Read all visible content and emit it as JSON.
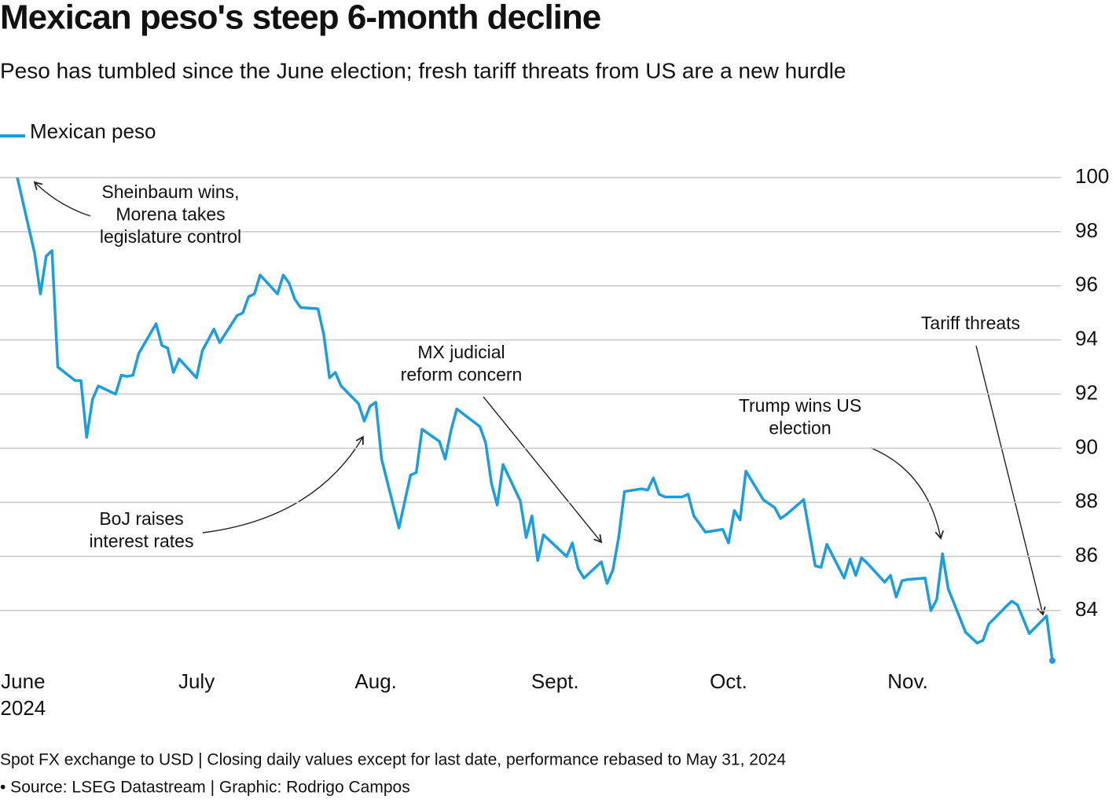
{
  "chart_data": {
    "type": "line",
    "title": "Mexican peso's steep 6-month decline",
    "subtitle": "Peso has tumbled since the June election; fresh tariff threats from US are a new hurdle",
    "x": [
      0,
      3,
      4,
      5,
      6,
      7,
      10,
      11,
      12,
      13,
      14,
      17,
      18,
      19,
      20,
      21,
      24,
      25,
      26,
      27,
      28,
      31,
      32,
      34,
      35,
      38,
      39,
      40,
      41,
      42,
      45,
      46,
      47,
      48,
      49,
      52,
      53,
      54,
      55,
      56,
      59,
      60,
      61,
      62,
      63,
      66,
      68,
      69,
      70,
      73,
      74,
      75,
      76,
      80,
      81,
      82,
      83,
      84,
      87,
      88,
      89,
      90,
      91,
      95,
      96,
      97,
      98,
      101,
      102,
      103,
      104,
      105,
      108,
      109,
      110,
      111,
      112,
      115,
      116,
      117,
      119,
      122,
      123,
      124,
      125,
      126,
      129,
      130,
      131,
      132,
      133,
      136,
      138,
      139,
      140,
      143,
      144,
      145,
      146,
      147,
      150,
      151,
      152,
      153,
      154,
      157,
      158,
      159,
      160,
      161,
      164,
      166,
      167,
      168,
      171,
      172,
      173,
      175,
      178,
      179
    ],
    "series": [
      {
        "name": "Mexican peso",
        "color": "#1b9ee0",
        "values": [
          100,
          97.2,
          95.7,
          97.1,
          97.3,
          93.0,
          92.5,
          92.5,
          90.4,
          91.8,
          92.3,
          92.0,
          92.7,
          92.65,
          92.7,
          93.5,
          94.6,
          93.8,
          93.7,
          92.8,
          93.3,
          92.6,
          93.6,
          94.4,
          93.9,
          94.9,
          95.0,
          95.6,
          95.7,
          96.4,
          95.7,
          96.4,
          96.1,
          95.5,
          95.2,
          95.15,
          94.2,
          92.6,
          92.8,
          92.3,
          91.65,
          91.0,
          91.55,
          91.7,
          89.6,
          87.05,
          89.0,
          89.1,
          90.7,
          90.25,
          89.6,
          90.65,
          91.45,
          90.8,
          90.2,
          88.7,
          87.9,
          89.4,
          88.05,
          86.7,
          87.5,
          85.85,
          86.8,
          86.0,
          86.5,
          85.55,
          85.2,
          85.8,
          85.0,
          85.5,
          86.7,
          88.4,
          88.5,
          88.45,
          88.9,
          88.3,
          88.2,
          88.2,
          88.3,
          87.5,
          86.9,
          87.0,
          86.5,
          87.7,
          87.35,
          89.15,
          88.1,
          87.95,
          87.8,
          87.4,
          87.55,
          88.1,
          85.65,
          85.6,
          86.45,
          85.2,
          85.9,
          85.3,
          85.95,
          85.75,
          85.05,
          85.3,
          84.5,
          85.1,
          85.15,
          85.2,
          84.0,
          84.4,
          86.1,
          84.8,
          83.2,
          82.8,
          82.9,
          83.5,
          84.15,
          84.35,
          84.2,
          83.15,
          83.8,
          82.15
        ]
      }
    ],
    "xlim": [
      0,
      179
    ],
    "xticks": [
      {
        "value": 1,
        "label": "June"
      },
      {
        "value": 31,
        "label": "July"
      },
      {
        "value": 62,
        "label": "Aug."
      },
      {
        "value": 93,
        "label": "Sept."
      },
      {
        "value": 123,
        "label": "Oct."
      },
      {
        "value": 154,
        "label": "Nov."
      }
    ],
    "x_year_label": "2024",
    "ylim": [
      82,
      100
    ],
    "yticks": [
      84,
      86,
      88,
      90,
      92,
      94,
      96,
      98,
      100
    ],
    "grid": true,
    "annotations": [
      {
        "lines": [
          "Sheinbaum wins,",
          "Morena takes",
          "legislature control"
        ]
      },
      {
        "lines": [
          "BoJ raises",
          "interest rates"
        ]
      },
      {
        "lines": [
          "MX judicial",
          "reform concern"
        ]
      },
      {
        "lines": [
          "Trump wins US",
          "election"
        ]
      },
      {
        "lines": [
          "Tariff threats"
        ]
      }
    ],
    "notes": [
      "Spot FX exchange to USD | Closing daily values except for last date, performance rebased to May 31, 2024",
      "• Source: LSEG Datastream | Graphic: Rodrigo Campos"
    ]
  }
}
